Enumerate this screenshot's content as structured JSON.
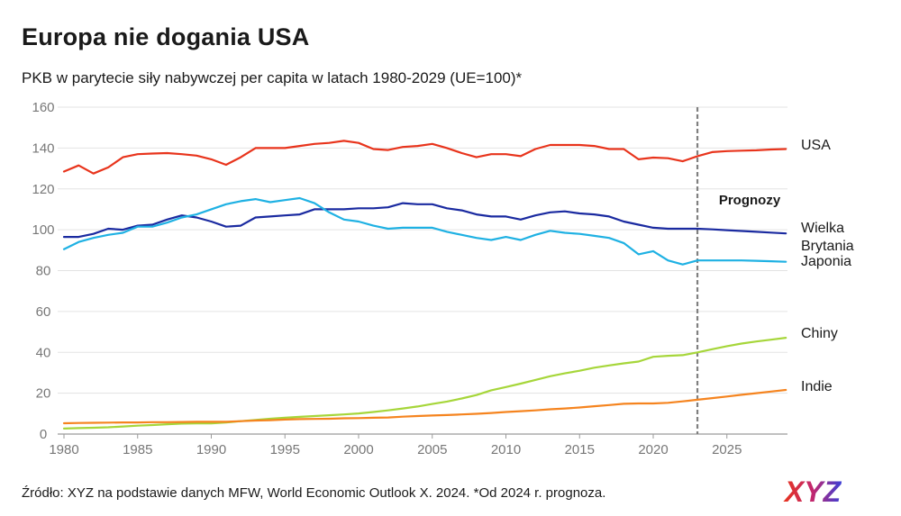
{
  "title": "Europa nie dogania USA",
  "subtitle": "PKB w parytecie siły nabywczej per capita w latach 1980-2029 (UE=100)*",
  "source": "Źródło: XYZ na podstawie danych MFW, World Economic Outlook X. 2024. *Od 2024 r. prognoza.",
  "logo_text": "XYZ",
  "chart_data": {
    "type": "line",
    "title": "Europa nie dogania USA",
    "subtitle": "PKB w parytecie siły nabywczej per capita w latach 1980-2029 (UE=100)*",
    "xlabel": "",
    "ylabel": "",
    "xlim": [
      1980,
      2029
    ],
    "ylim": [
      0,
      160
    ],
    "x_ticks": [
      1980,
      1985,
      1990,
      1995,
      2000,
      2005,
      2010,
      2015,
      2020,
      2025
    ],
    "y_ticks": [
      0,
      20,
      40,
      60,
      80,
      100,
      120,
      140,
      160
    ],
    "grid": true,
    "forecast_start": 2023,
    "forecast_label": "Prognozy",
    "x": [
      1980,
      1981,
      1982,
      1983,
      1984,
      1985,
      1986,
      1987,
      1988,
      1989,
      1990,
      1991,
      1992,
      1993,
      1994,
      1995,
      1996,
      1997,
      1998,
      1999,
      2000,
      2001,
      2002,
      2003,
      2004,
      2005,
      2006,
      2007,
      2008,
      2009,
      2010,
      2011,
      2012,
      2013,
      2014,
      2015,
      2016,
      2017,
      2018,
      2019,
      2020,
      2021,
      2022,
      2023,
      2024,
      2025,
      2026,
      2027,
      2028,
      2029
    ],
    "series": [
      {
        "name": "USA",
        "label": "USA",
        "color": "#e8341c",
        "values": [
          128.5,
          131.5,
          127.5,
          130.5,
          135.5,
          137,
          137.3,
          137.5,
          137,
          136.3,
          134.5,
          131.8,
          135.5,
          140,
          140,
          140,
          141,
          142,
          142.5,
          143.5,
          142.5,
          139.5,
          139,
          140.5,
          141,
          142,
          140,
          137.5,
          135.5,
          137,
          137,
          136,
          139.5,
          141.5,
          141.5,
          141.5,
          141,
          139.5,
          139.5,
          134.5,
          135.3,
          135,
          133.5,
          136,
          138,
          138.5,
          138.7,
          138.9,
          139.3,
          139.5
        ]
      },
      {
        "name": "Wielka Brytania",
        "label_lines": [
          "Wielka",
          "Brytania"
        ],
        "color": "#1a2aa0",
        "values": [
          96.5,
          96.5,
          98,
          100.5,
          100,
          102,
          102.5,
          105,
          107,
          106,
          104,
          101.5,
          102,
          106,
          106.5,
          107,
          107.5,
          110,
          110,
          110,
          110.5,
          110.5,
          111,
          113,
          112.5,
          112.5,
          110.5,
          109.5,
          107.5,
          106.5,
          106.5,
          105,
          107,
          108.5,
          109,
          108,
          107.5,
          106.5,
          104,
          102.5,
          101,
          100.5,
          100.5,
          100.5,
          100.2,
          99.8,
          99.4,
          99,
          98.6,
          98.2
        ]
      },
      {
        "name": "Japonia",
        "label": "Japonia",
        "color": "#1fb1e3",
        "values": [
          90.5,
          94,
          96,
          97.5,
          98.5,
          101.5,
          101.5,
          103.5,
          106,
          107.5,
          110,
          112.5,
          114,
          115,
          113.5,
          114.5,
          115.5,
          113,
          108.5,
          105,
          104,
          102,
          100.5,
          101,
          101,
          101,
          99,
          97.5,
          96,
          95,
          96.5,
          95,
          97.5,
          99.5,
          98.5,
          98,
          97,
          96,
          93.5,
          88,
          89.5,
          85,
          83,
          85,
          85,
          85,
          85,
          84.8,
          84.6,
          84.3
        ]
      },
      {
        "name": "Chiny",
        "label": "Chiny",
        "color": "#a6d63a",
        "values": [
          2.7,
          2.9,
          3.1,
          3.3,
          3.7,
          4.1,
          4.4,
          4.8,
          5.1,
          5.2,
          5.2,
          5.7,
          6.3,
          6.9,
          7.5,
          8,
          8.4,
          8.8,
          9.2,
          9.6,
          10.1,
          10.8,
          11.6,
          12.5,
          13.5,
          14.7,
          15.9,
          17.4,
          19.1,
          21.4,
          23,
          24.7,
          26.5,
          28.3,
          29.7,
          31,
          32.5,
          33.6,
          34.6,
          35.5,
          37.8,
          38.3,
          38.6,
          40,
          41.5,
          43,
          44.3,
          45.3,
          46.2,
          47.1
        ]
      },
      {
        "name": "Indie",
        "label": "Indie",
        "color": "#f5841f",
        "values": [
          5.3,
          5.4,
          5.5,
          5.6,
          5.7,
          5.7,
          5.8,
          5.8,
          5.9,
          6,
          6,
          6,
          6.3,
          6.6,
          6.8,
          7.1,
          7.3,
          7.4,
          7.5,
          7.7,
          7.8,
          8,
          8.1,
          8.5,
          8.8,
          9.1,
          9.3,
          9.6,
          9.9,
          10.3,
          10.8,
          11.2,
          11.6,
          12.1,
          12.5,
          13,
          13.6,
          14.2,
          14.8,
          15,
          15,
          15.3,
          16,
          16.8,
          17.6,
          18.4,
          19.2,
          20,
          20.8,
          21.6
        ]
      }
    ]
  }
}
